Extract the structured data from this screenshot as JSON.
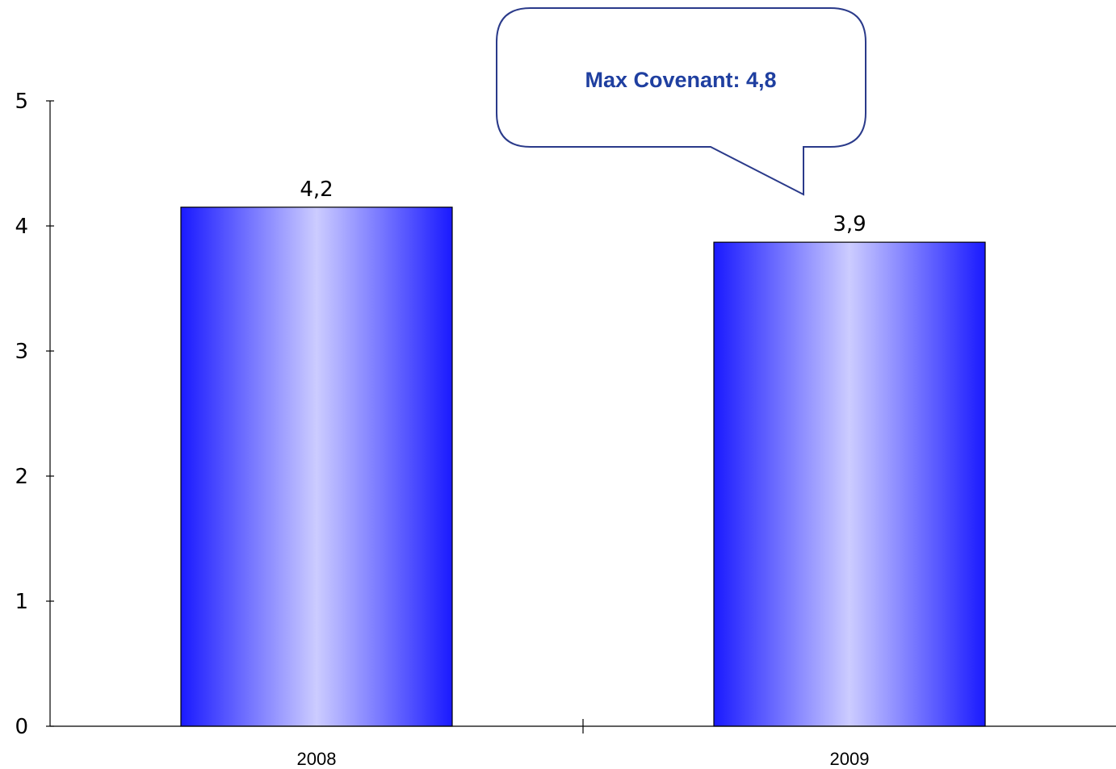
{
  "chart_data": {
    "type": "bar",
    "categories": [
      "2008",
      "2009"
    ],
    "values": [
      4.15,
      3.87
    ],
    "data_labels": [
      "4,2",
      "3,9"
    ],
    "y_ticks": [
      "0",
      "1",
      "2",
      "3",
      "4",
      "5"
    ],
    "ylim": [
      0,
      5
    ],
    "title": "",
    "xlabel": "",
    "ylabel": "",
    "grid": false,
    "legend": "none",
    "annotation": {
      "text": "Max Covenant: 4,8",
      "target_category": "2009"
    },
    "colors": {
      "bar_edge": "#1a1aff",
      "bar_center": "#ccccff",
      "annotation_text": "#1f3fa0",
      "annotation_border": "#2a3a8a"
    }
  }
}
